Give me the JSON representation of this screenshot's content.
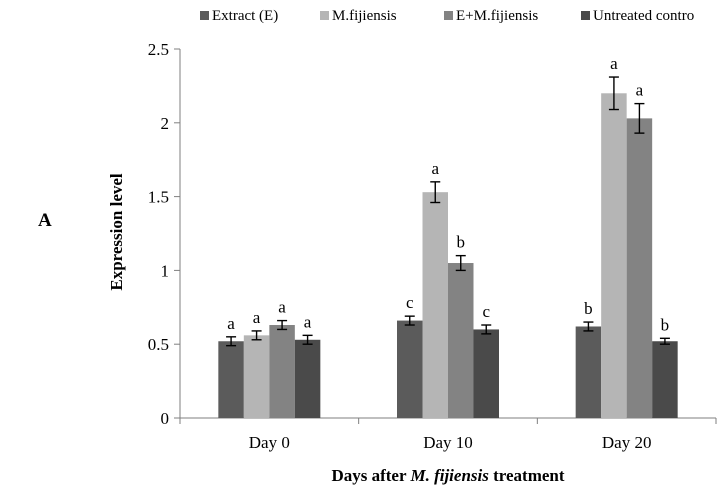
{
  "panel_label": "A",
  "colors": {
    "series": [
      "#5b5b5b",
      "#b5b5b5",
      "#838383",
      "#4a4a4a"
    ],
    "axis": "#7f7f7f",
    "error_bar": "#000000"
  },
  "chart_data": {
    "type": "bar",
    "title": "",
    "xlabel_prefix": "Days after ",
    "xlabel_italic": "M. fijiensis",
    "xlabel_suffix": " treatment",
    "ylabel": "Expression level",
    "ylim": [
      0,
      2.5
    ],
    "yticks": [
      "0",
      "0.5",
      "1",
      "1.5",
      "2",
      "2.5"
    ],
    "grid": false,
    "legend_position": "top",
    "categories": [
      "Day 0",
      "Day 10",
      "Day 20"
    ],
    "series": [
      {
        "name": "Extract (E)",
        "values": [
          0.52,
          0.66,
          0.62
        ],
        "errors": [
          0.03,
          0.03,
          0.03
        ],
        "labels": [
          "a",
          "c",
          "b"
        ]
      },
      {
        "name": "M.fijiensis",
        "values": [
          0.56,
          1.53,
          2.2
        ],
        "errors": [
          0.03,
          0.07,
          0.11
        ],
        "labels": [
          "a",
          "a",
          "a"
        ]
      },
      {
        "name": "E+M.fijiensis",
        "values": [
          0.63,
          1.05,
          2.03
        ],
        "errors": [
          0.03,
          0.05,
          0.1
        ],
        "labels": [
          "a",
          "b",
          "a"
        ]
      },
      {
        "name": "Untreated contro",
        "values": [
          0.53,
          0.6,
          0.52
        ],
        "errors": [
          0.03,
          0.03,
          0.02
        ],
        "labels": [
          "a",
          "c",
          "b"
        ]
      }
    ]
  }
}
